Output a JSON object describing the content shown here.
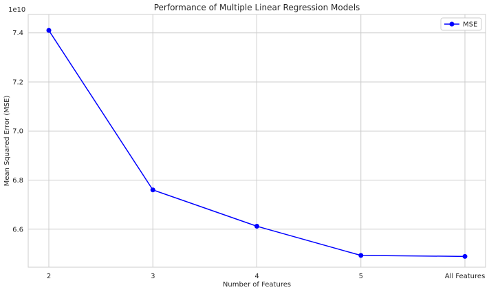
{
  "chart_data": {
    "type": "line",
    "title": "Performance of Multiple Linear Regression Models",
    "xlabel": "Number of Features",
    "ylabel": "Mean Squared Error (MSE)",
    "y_offset_label": "1e10",
    "categories": [
      "2",
      "3",
      "4",
      "5",
      "All Features"
    ],
    "series": [
      {
        "name": "MSE",
        "values": [
          74100000000.0,
          67600000000.0,
          66120000000.0,
          64930000000.0,
          64890000000.0
        ],
        "color": "#0000ff",
        "marker": "circle"
      }
    ],
    "ylim": [
      64450000000.0,
      74750000000.0
    ],
    "yticks": [
      66000000000.0,
      68000000000.0,
      70000000000.0,
      72000000000.0,
      74000000000.0
    ],
    "ytick_labels": [
      "6.6",
      "6.8",
      "7.0",
      "7.2",
      "7.4"
    ],
    "grid": true,
    "legend": "top-right"
  }
}
